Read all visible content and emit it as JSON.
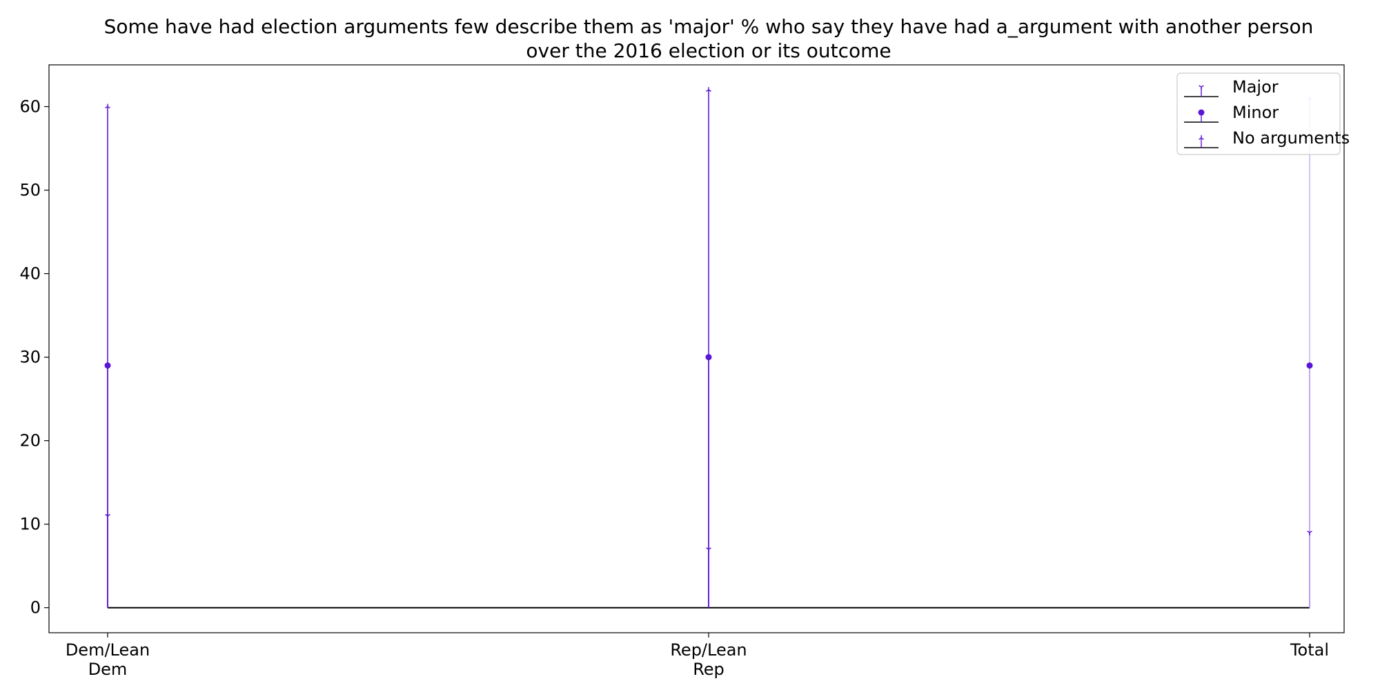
{
  "chart_data": {
    "type": "stem",
    "title_lines": [
      "Some have had election arguments few describe them as 'major' % who say they have had a_argument with another person",
      "over the 2016 election or its outcome"
    ],
    "categories": [
      [
        "Dem/Lean",
        "Dem"
      ],
      [
        "Rep/Lean",
        "Rep"
      ],
      [
        "Total"
      ]
    ],
    "xlabel": "",
    "ylabel": "",
    "ylim": [
      -3,
      65
    ],
    "yticks": [
      0,
      10,
      20,
      30,
      40,
      50,
      60
    ],
    "grid": false,
    "legend_position": "top-right",
    "series": [
      {
        "name": "Major",
        "values": [
          11,
          7,
          9
        ],
        "color": "#5a16d6",
        "marker": "tri-down"
      },
      {
        "name": "Minor",
        "values": [
          29,
          30,
          29
        ],
        "color": "#5a16d6",
        "marker": "circle"
      },
      {
        "name": "No arguments",
        "values": [
          60,
          62,
          61
        ],
        "color": "#5a16d6",
        "marker": "tri-up"
      }
    ],
    "baseline_color": "#000000",
    "faded_top_marker_on_last": true
  }
}
